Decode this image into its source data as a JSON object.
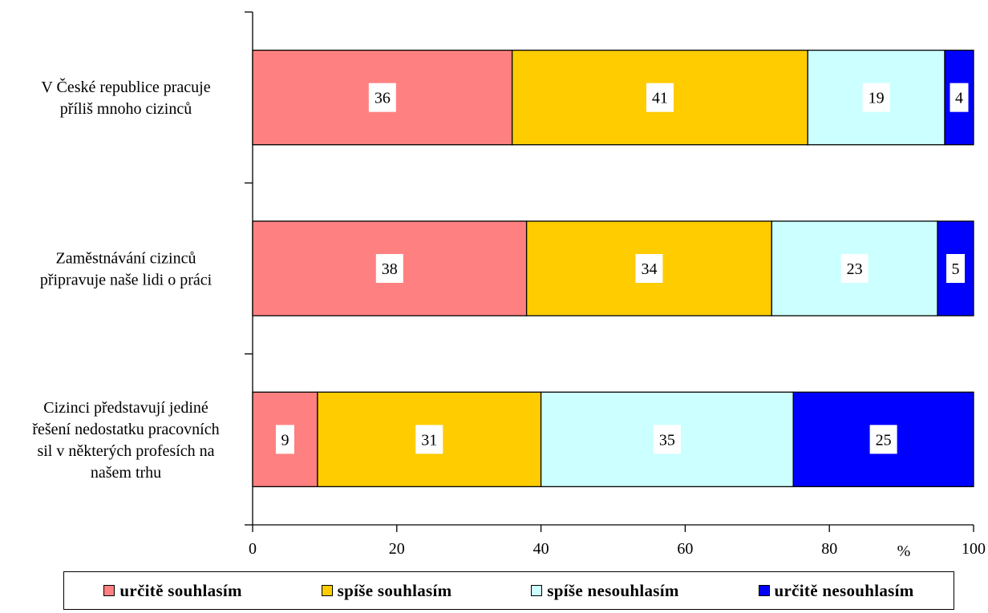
{
  "chart_data": {
    "type": "bar",
    "orientation": "horizontal",
    "stacked": true,
    "categories": [
      [
        "V České republice pracuje",
        "příliš mnoho cizinců"
      ],
      [
        "Zaměstnávání cizinců",
        "připravuje naše lidi o práci"
      ],
      [
        "Cizinci představují jediné",
        "řešení nedostatku pracovních",
        "sil v některých profesích na",
        "našem trhu"
      ]
    ],
    "series": [
      {
        "name": "určitě souhlasím",
        "color": "#ff8080",
        "values": [
          36,
          38,
          9
        ]
      },
      {
        "name": "spíše souhlasím",
        "color": "#ffcc00",
        "values": [
          41,
          34,
          31
        ]
      },
      {
        "name": "spíše nesouhlasím",
        "color": "#ccffff",
        "values": [
          19,
          23,
          35
        ]
      },
      {
        "name": "určitě nesouhlasím",
        "color": "#0000ff",
        "values": [
          4,
          5,
          25
        ]
      }
    ],
    "xlim": [
      0,
      100
    ],
    "xticks": [
      "0",
      "20",
      "40",
      "60",
      "80",
      "100"
    ],
    "unit_label": "%",
    "legend_position": "bottom",
    "grid": false
  }
}
